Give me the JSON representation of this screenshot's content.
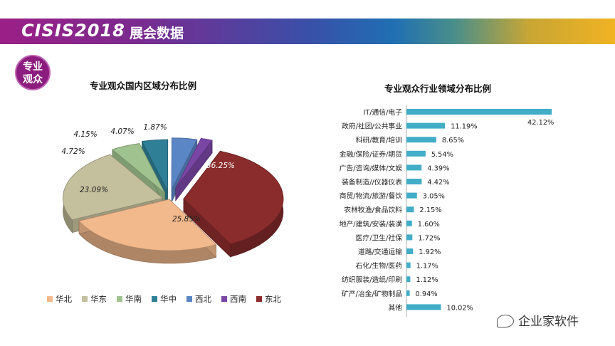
{
  "header": {
    "logo_text": "CISIS2018",
    "title": "展会数据"
  },
  "badge": {
    "line1": "专业",
    "line2": "观众"
  },
  "colors": {
    "华北": "#f2b98c",
    "华东": "#c4bf9c",
    "华南": "#9fc28f",
    "华中": "#2f7f97",
    "西北": "#5b86c6",
    "西南": "#7a46a6",
    "东北": "#8b2c2c",
    "bar": "#41adc6"
  },
  "chart_data": [
    {
      "type": "pie",
      "title": "专业观众国内区域分布比例",
      "legend_position": "bottom",
      "slices": [
        {
          "name": "华北",
          "value": 25.85,
          "label": "25.85%"
        },
        {
          "name": "华东",
          "value": 23.09,
          "label": "23.09%"
        },
        {
          "name": "华南",
          "value": 4.72,
          "label": "4.72%"
        },
        {
          "name": "华中",
          "value": 4.15,
          "label": "4.15%"
        },
        {
          "name": "西北",
          "value": 4.07,
          "label": "4.07%"
        },
        {
          "name": "西南",
          "value": 1.87,
          "label": "1.87%"
        },
        {
          "name": "东北",
          "value": 36.25,
          "label": "36.25%"
        }
      ]
    },
    {
      "type": "bar",
      "orientation": "horizontal",
      "title": "专业观众行业领域分布比例",
      "xlim": [
        0,
        42.12
      ],
      "categories": [
        "IT/通信/电子",
        "政府/社团/公共事业",
        "科研/教育/培训",
        "金融/保险/证券/期货",
        "广告/咨询/媒体/文娱",
        "装备制造//仪器仪表",
        "商贸/物流/旅游/餐饮",
        "农林牧渔/食品饮料",
        "地产/建筑/安装/装潢",
        "医疗/卫生/社保",
        "道路/交通运输",
        "石化/生物/医药",
        "纺织服装/造纸/印刷",
        "矿产/冶金/矿物制品",
        "其他"
      ],
      "values": [
        42.12,
        11.19,
        8.65,
        5.54,
        4.39,
        4.42,
        3.05,
        2.15,
        1.6,
        1.72,
        1.92,
        1.17,
        1.12,
        0.94,
        10.02
      ],
      "labels": [
        "42.12%",
        "11.19%",
        "8.65%",
        "5.54%",
        "4.39%",
        "4.42%",
        "3.05%",
        "2.15%",
        "1.60%",
        "1.72%",
        "1.92%",
        "1.17%",
        "1.12%",
        "0.94%",
        "10.02%"
      ]
    }
  ],
  "watermark": "企业家软件"
}
